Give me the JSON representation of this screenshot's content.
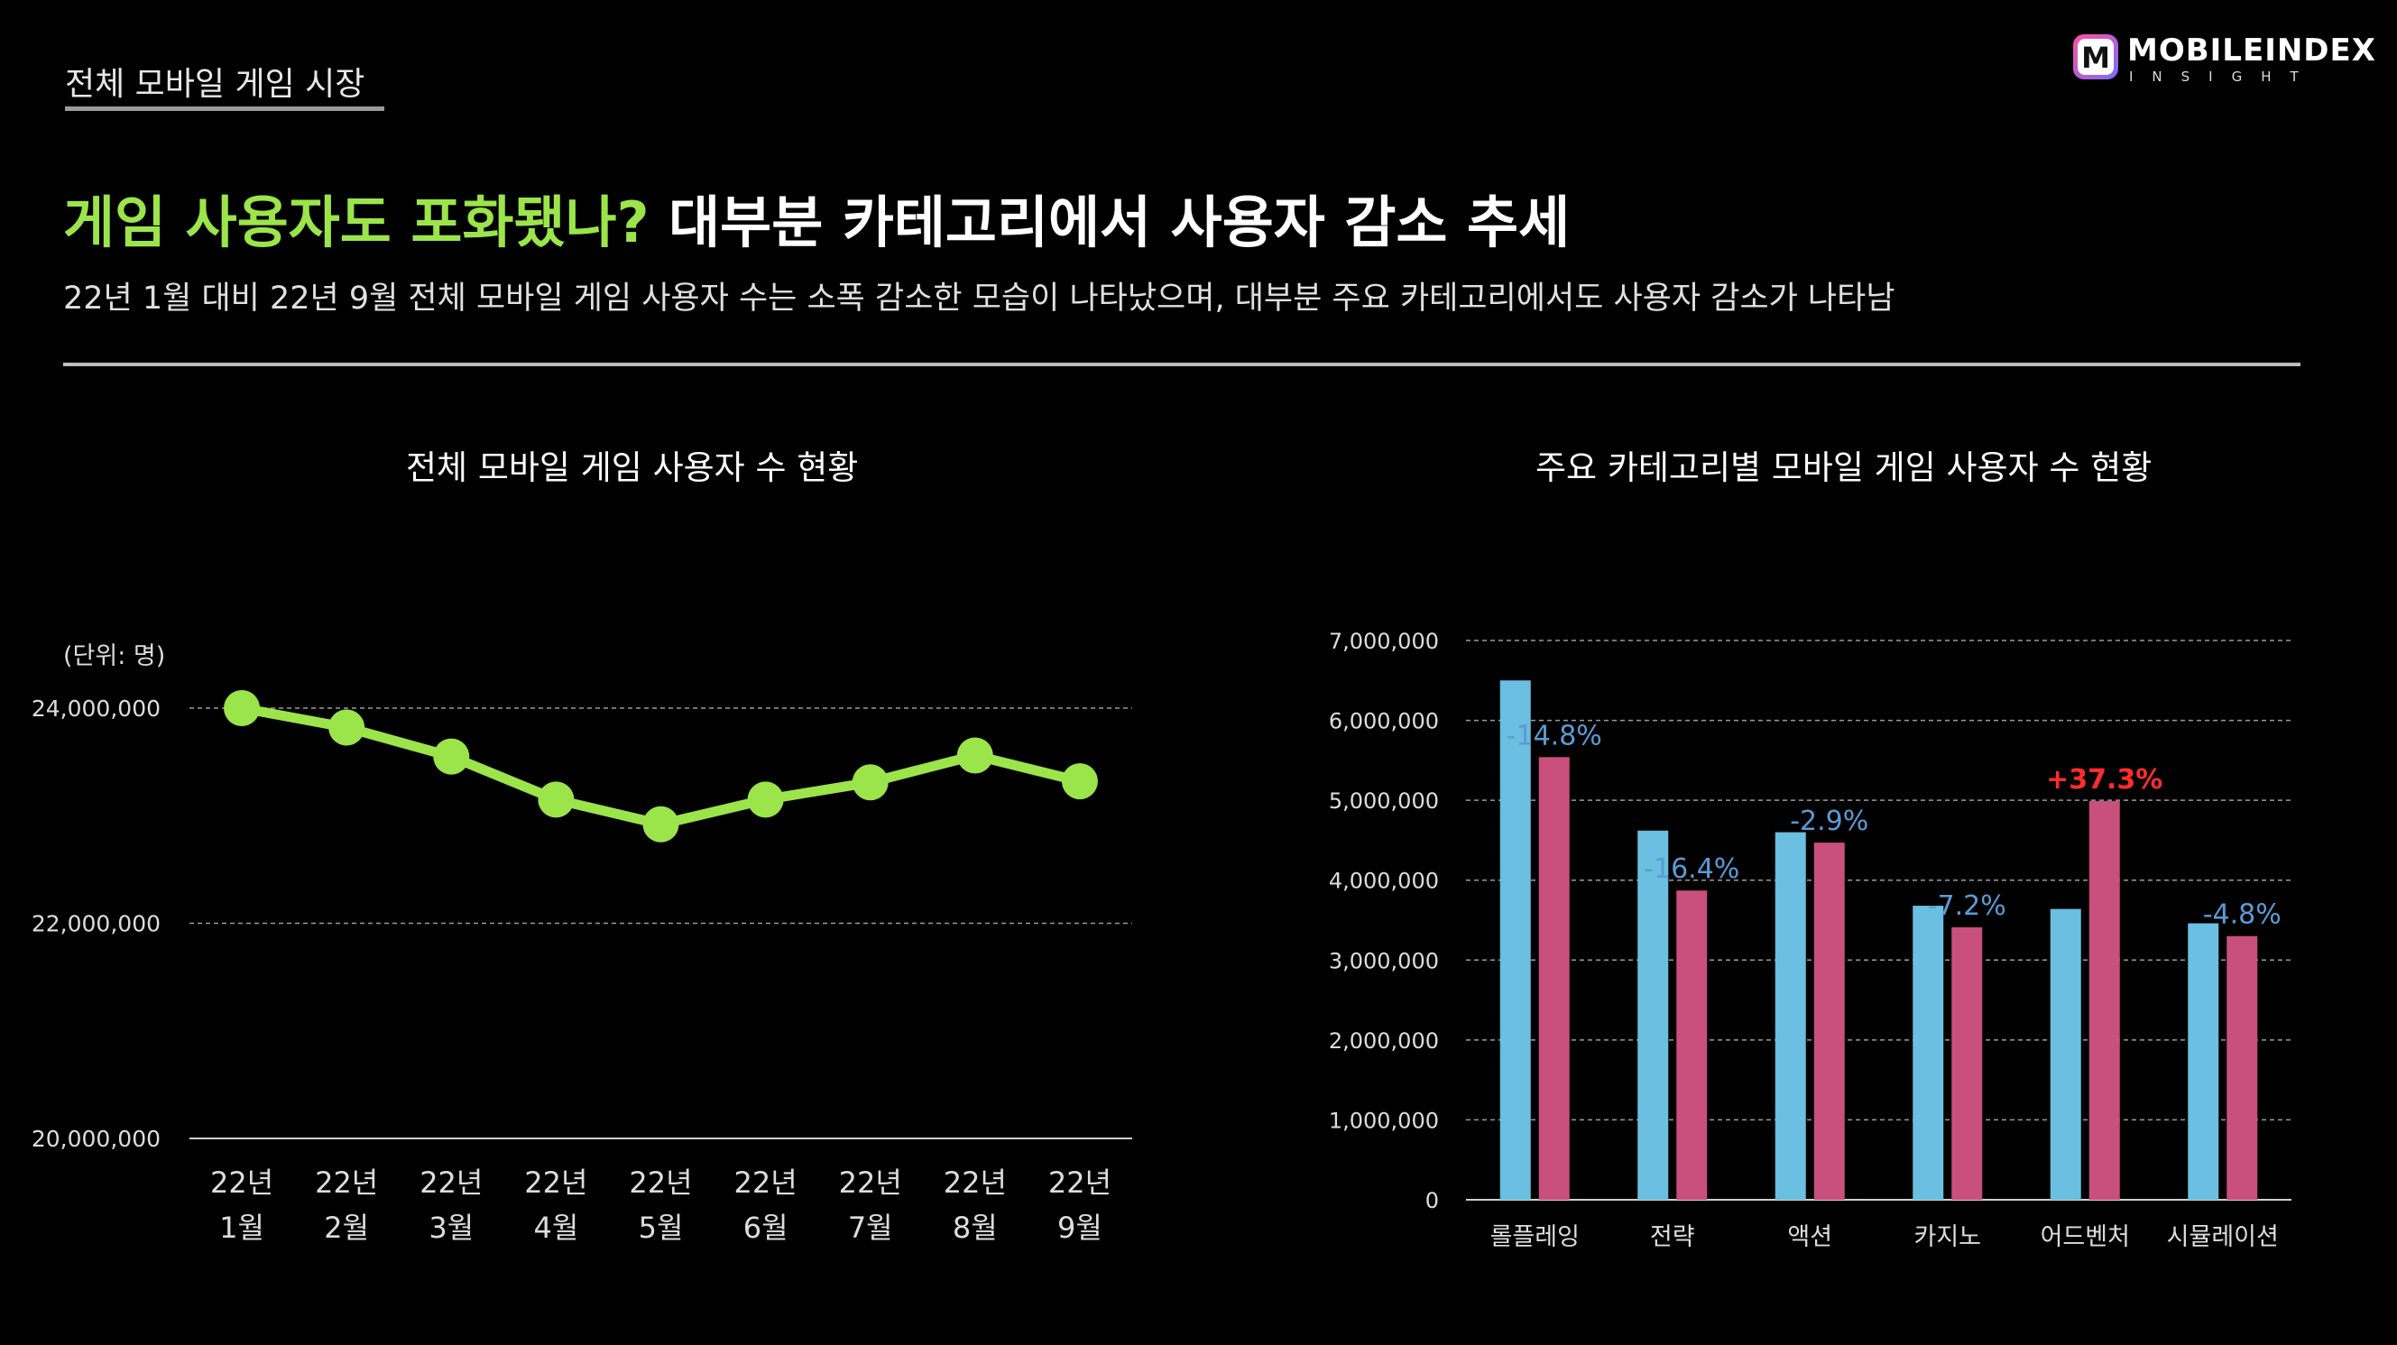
{
  "section_tag": "전체 모바일 게임 시장",
  "logo": {
    "main": "MOBILEINDEX",
    "sub": "INSIGHT",
    "mark": "M"
  },
  "headline": {
    "highlight": "게임 사용자도 포화됐나?",
    "rest": "대부분 카테고리에서 사용자 감소 추세"
  },
  "subhead": "22년 1월 대비 22년 9월 전체 모바일 게임 사용자 수는 소폭 감소한 모습이 나타났으며, 대부분 주요 카테고리에서도 사용자 감소가 나타남",
  "chart_data": [
    {
      "type": "line",
      "title": "전체 모바일 게임 사용자 수 현황",
      "unit_label": "(단위: 명)",
      "categories": [
        "22년 1월",
        "22년 2월",
        "22년 3월",
        "22년 4월",
        "22년 5월",
        "22년 6월",
        "22년 7월",
        "22년 8월",
        "22년 9월"
      ],
      "category_lines": [
        [
          "22년",
          "1월"
        ],
        [
          "22년",
          "2월"
        ],
        [
          "22년",
          "3월"
        ],
        [
          "22년",
          "4월"
        ],
        [
          "22년",
          "5월"
        ],
        [
          "22년",
          "6월"
        ],
        [
          "22년",
          "7월"
        ],
        [
          "22년",
          "8월"
        ],
        [
          "22년",
          "9월"
        ]
      ],
      "values": [
        24000000,
        23820000,
        23550000,
        23150000,
        22920000,
        23150000,
        23310000,
        23560000,
        23320000
      ],
      "ylim": [
        20000000,
        24000000
      ],
      "yticks": [
        20000000,
        22000000,
        24000000
      ],
      "ytick_labels": [
        "20,000,000",
        "22,000,000",
        "24,000,000"
      ],
      "grid": true,
      "color": "#9be54a"
    },
    {
      "type": "bar",
      "title": "주요 카테고리별 모바일 게임 사용자 수 현황",
      "categories": [
        "롤플레잉",
        "전략",
        "액션",
        "카지노",
        "어드벤처",
        "시뮬레이션"
      ],
      "series": [
        {
          "values": [
            6500000,
            4620000,
            4600000,
            3680000,
            3640000,
            3460000
          ],
          "color": "#6bbfe0"
        },
        {
          "values": [
            5540000,
            3870000,
            4470000,
            3410000,
            4990000,
            3300000
          ],
          "color": "#c94f7c"
        }
      ],
      "change_labels": [
        "-14.8%",
        "-16.4%",
        "-2.9%",
        "-7.2%",
        "+37.3%",
        "-4.8%"
      ],
      "change_colors": [
        "#5b9bd5",
        "#5b9bd5",
        "#5b9bd5",
        "#5b9bd5",
        "#ff2d2d",
        "#5b9bd5"
      ],
      "ylim": [
        0,
        7000000
      ],
      "yticks": [
        0,
        1000000,
        2000000,
        3000000,
        4000000,
        5000000,
        6000000,
        7000000
      ],
      "ytick_labels": [
        "0",
        "1,000,000",
        "2,000,000",
        "3,000,000",
        "4,000,000",
        "5,000,000",
        "6,000,000",
        "7,000,000"
      ],
      "grid": true
    }
  ]
}
